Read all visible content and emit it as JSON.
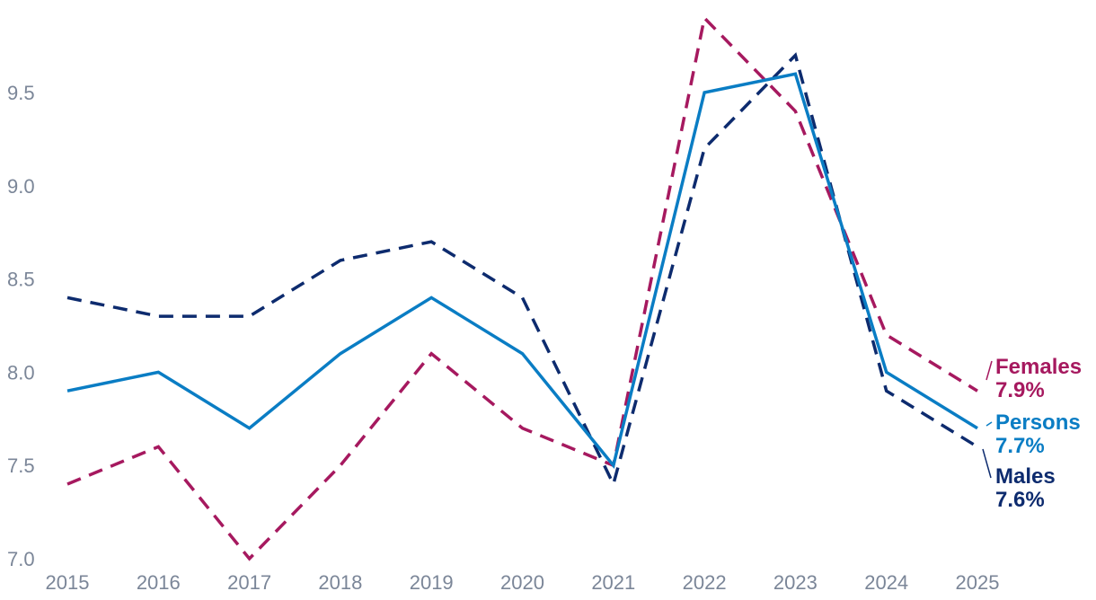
{
  "chart_data": {
    "type": "line",
    "title": "",
    "xlabel": "",
    "ylabel": "",
    "x": [
      2015,
      2016,
      2017,
      2018,
      2019,
      2020,
      2021,
      2022,
      2023,
      2024,
      2025
    ],
    "ylim": [
      7.0,
      9.9
    ],
    "yticks": [
      "7.0",
      "7.5",
      "8.0",
      "8.5",
      "9.0",
      "9.5"
    ],
    "xticks": [
      "2015",
      "2016",
      "2017",
      "2018",
      "2019",
      "2020",
      "2021",
      "2022",
      "2023",
      "2024",
      "2025"
    ],
    "grid": false,
    "legend": "end-labels-right",
    "series": [
      {
        "name": "Females",
        "end_value_label": "7.9%",
        "color": "#a6195f",
        "dash": "dashed",
        "values": [
          7.4,
          7.6,
          7.0,
          7.5,
          8.1,
          7.7,
          7.5,
          9.9,
          9.4,
          8.2,
          7.9
        ]
      },
      {
        "name": "Persons",
        "end_value_label": "7.7%",
        "color": "#0a7dc4",
        "dash": "solid",
        "values": [
          7.9,
          8.0,
          7.7,
          8.1,
          8.4,
          8.1,
          7.5,
          9.5,
          9.6,
          8.0,
          7.7
        ]
      },
      {
        "name": "Males",
        "end_value_label": "7.6%",
        "color": "#0d2b6e",
        "dash": "dashed",
        "values": [
          8.4,
          8.3,
          8.3,
          8.6,
          8.7,
          8.4,
          7.4,
          9.2,
          9.7,
          7.9,
          7.6
        ]
      }
    ]
  }
}
